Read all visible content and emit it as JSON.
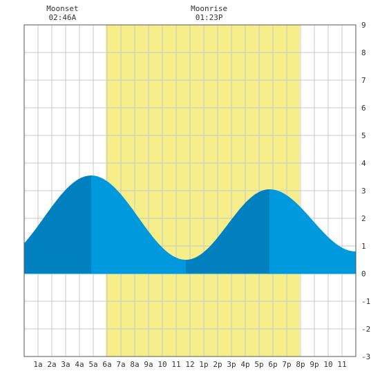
{
  "chart_data": {
    "type": "area",
    "title": "",
    "xlabel": "",
    "ylabel": "",
    "xlim": [
      0,
      24
    ],
    "ylim": [
      -3,
      9
    ],
    "grid": true,
    "x_ticks": [
      {
        "x": 1,
        "label": "1a"
      },
      {
        "x": 2,
        "label": "2a"
      },
      {
        "x": 3,
        "label": "3a"
      },
      {
        "x": 4,
        "label": "4a"
      },
      {
        "x": 5,
        "label": "5a"
      },
      {
        "x": 6,
        "label": "6a"
      },
      {
        "x": 7,
        "label": "7a"
      },
      {
        "x": 8,
        "label": "8a"
      },
      {
        "x": 9,
        "label": "9a"
      },
      {
        "x": 10,
        "label": "10"
      },
      {
        "x": 11,
        "label": "11"
      },
      {
        "x": 12,
        "label": "12"
      },
      {
        "x": 13,
        "label": "1p"
      },
      {
        "x": 14,
        "label": "2p"
      },
      {
        "x": 15,
        "label": "3p"
      },
      {
        "x": 16,
        "label": "4p"
      },
      {
        "x": 17,
        "label": "5p"
      },
      {
        "x": 18,
        "label": "6p"
      },
      {
        "x": 19,
        "label": "7p"
      },
      {
        "x": 20,
        "label": "8p"
      },
      {
        "x": 21,
        "label": "9p"
      },
      {
        "x": 22,
        "label": "10"
      },
      {
        "x": 23,
        "label": "11"
      }
    ],
    "y_ticks": [
      -3,
      -2,
      -1,
      0,
      1,
      2,
      3,
      4,
      5,
      6,
      7,
      8,
      9
    ],
    "daylight": {
      "start": 5.9,
      "end": 19.95
    },
    "tide_extremes": [
      {
        "time": 4.85,
        "height": 3.55,
        "kind": "high"
      },
      {
        "time": 11.7,
        "height": 0.5,
        "kind": "low"
      },
      {
        "time": 17.75,
        "height": 3.05,
        "kind": "high"
      },
      {
        "time": 24.0,
        "height": 0.8,
        "kind": "low"
      }
    ],
    "tide_start": {
      "time": 0,
      "height": 1.15
    },
    "moon_events": [
      {
        "name": "Moonset",
        "time_label": "02:46A",
        "time": 2.77
      },
      {
        "name": "Moonrise",
        "time_label": "01:23P",
        "time": 13.38
      }
    ],
    "colors": {
      "daylight": "#f5ee8a",
      "tide_light": "#0099dd",
      "tide_dark": "#0080bf",
      "grid": "#c8c8c8",
      "axis": "#555555"
    }
  }
}
